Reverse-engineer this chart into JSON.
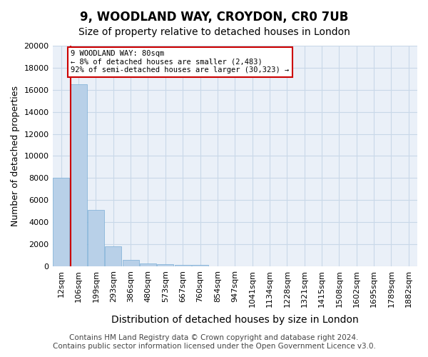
{
  "title": "9, WOODLAND WAY, CROYDON, CR0 7UB",
  "subtitle": "Size of property relative to detached houses in London",
  "xlabel": "Distribution of detached houses by size in London",
  "ylabel": "Number of detached properties",
  "categories": [
    "12sqm",
    "106sqm",
    "199sqm",
    "293sqm",
    "386sqm",
    "480sqm",
    "573sqm",
    "667sqm",
    "760sqm",
    "854sqm",
    "947sqm",
    "1041sqm",
    "1134sqm",
    "1228sqm",
    "1321sqm",
    "1415sqm",
    "1508sqm",
    "1602sqm",
    "1695sqm",
    "1789sqm",
    "1882sqm"
  ],
  "values": [
    8050,
    16500,
    5100,
    1800,
    600,
    280,
    180,
    130,
    100,
    0,
    0,
    0,
    0,
    0,
    0,
    0,
    0,
    0,
    0,
    0,
    0
  ],
  "bar_color": "#b8d0e8",
  "bar_edge_color": "#7aaed6",
  "vline_color": "#cc0000",
  "annotation_text": "9 WOODLAND WAY: 80sqm\n← 8% of detached houses are smaller (2,483)\n92% of semi-detached houses are larger (30,323) →",
  "annotation_box_color": "#cc0000",
  "ylim": [
    0,
    20000
  ],
  "yticks": [
    0,
    2000,
    4000,
    6000,
    8000,
    10000,
    12000,
    14000,
    16000,
    18000,
    20000
  ],
  "grid_color": "#c8d8e8",
  "bg_color": "#eaf0f8",
  "footer_line1": "Contains HM Land Registry data © Crown copyright and database right 2024.",
  "footer_line2": "Contains public sector information licensed under the Open Government Licence v3.0.",
  "title_fontsize": 12,
  "subtitle_fontsize": 10,
  "xlabel_fontsize": 10,
  "ylabel_fontsize": 9,
  "tick_fontsize": 8,
  "footer_fontsize": 7.5
}
